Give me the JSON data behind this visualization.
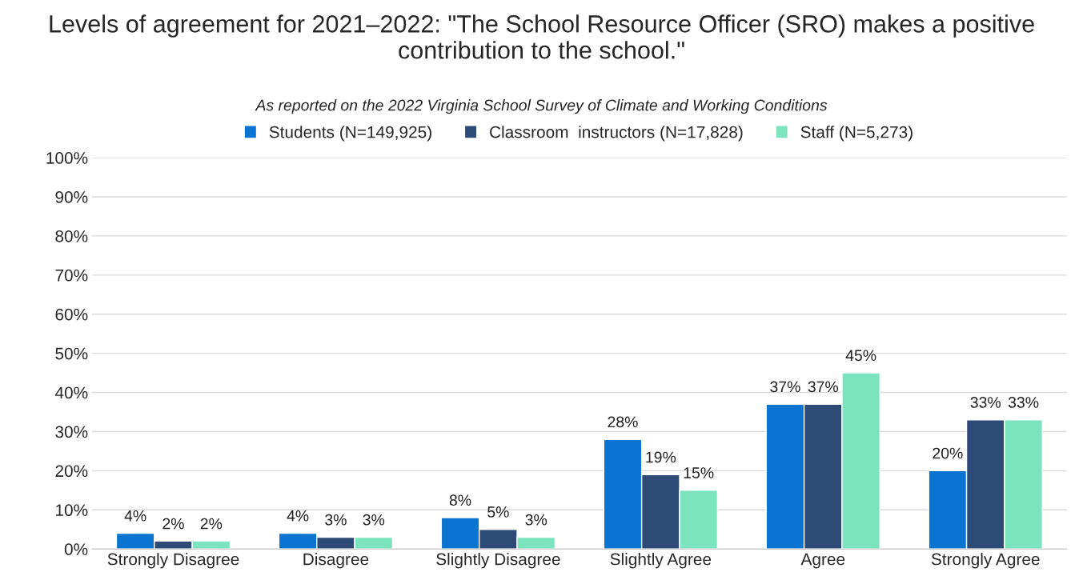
{
  "chart_data": {
    "type": "bar",
    "title": "Levels of agreement for 2021–2022: \"The School Resource Officer (SRO) makes a positive contribution to the school.\"",
    "subtitle": "As reported on the 2022 Virginia School Survey of Climate and Working Conditions",
    "categories": [
      "Strongly Disagree",
      "Disagree",
      "Slightly Disagree",
      "Slightly Agree",
      "Agree",
      "Strongly Agree"
    ],
    "series": [
      {
        "name": "Students (N=149,925)",
        "color": "#0b74d0",
        "values": [
          4,
          4,
          8,
          28,
          37,
          20
        ],
        "value_labels": [
          "4%",
          "4%",
          "8%",
          "28%",
          "37%",
          "20%"
        ]
      },
      {
        "name": "Classroom  instructors (N=17,828)",
        "color": "#2e4a76",
        "values": [
          2,
          3,
          5,
          19,
          37,
          33
        ],
        "value_labels": [
          "2%",
          "3%",
          "5%",
          "19%",
          "37%",
          "33%"
        ]
      },
      {
        "name": "Staff (N=5,273)",
        "color": "#7be3bd",
        "values": [
          2,
          3,
          3,
          15,
          45,
          33
        ],
        "value_labels": [
          "2%",
          "3%",
          "3%",
          "15%",
          "45%",
          "33%"
        ]
      }
    ],
    "ylim": [
      0,
      100
    ],
    "yticks": [
      {
        "value": 0,
        "label": "0%"
      },
      {
        "value": 10,
        "label": "10%"
      },
      {
        "value": 20,
        "label": "20%"
      },
      {
        "value": 30,
        "label": "30%"
      },
      {
        "value": 40,
        "label": "40%"
      },
      {
        "value": 50,
        "label": "50%"
      },
      {
        "value": 60,
        "label": "60%"
      },
      {
        "value": 70,
        "label": "70%"
      },
      {
        "value": 80,
        "label": "80%"
      },
      {
        "value": 90,
        "label": "90%"
      },
      {
        "value": 100,
        "label": "100%"
      }
    ],
    "grid": "y",
    "legend": "top"
  }
}
